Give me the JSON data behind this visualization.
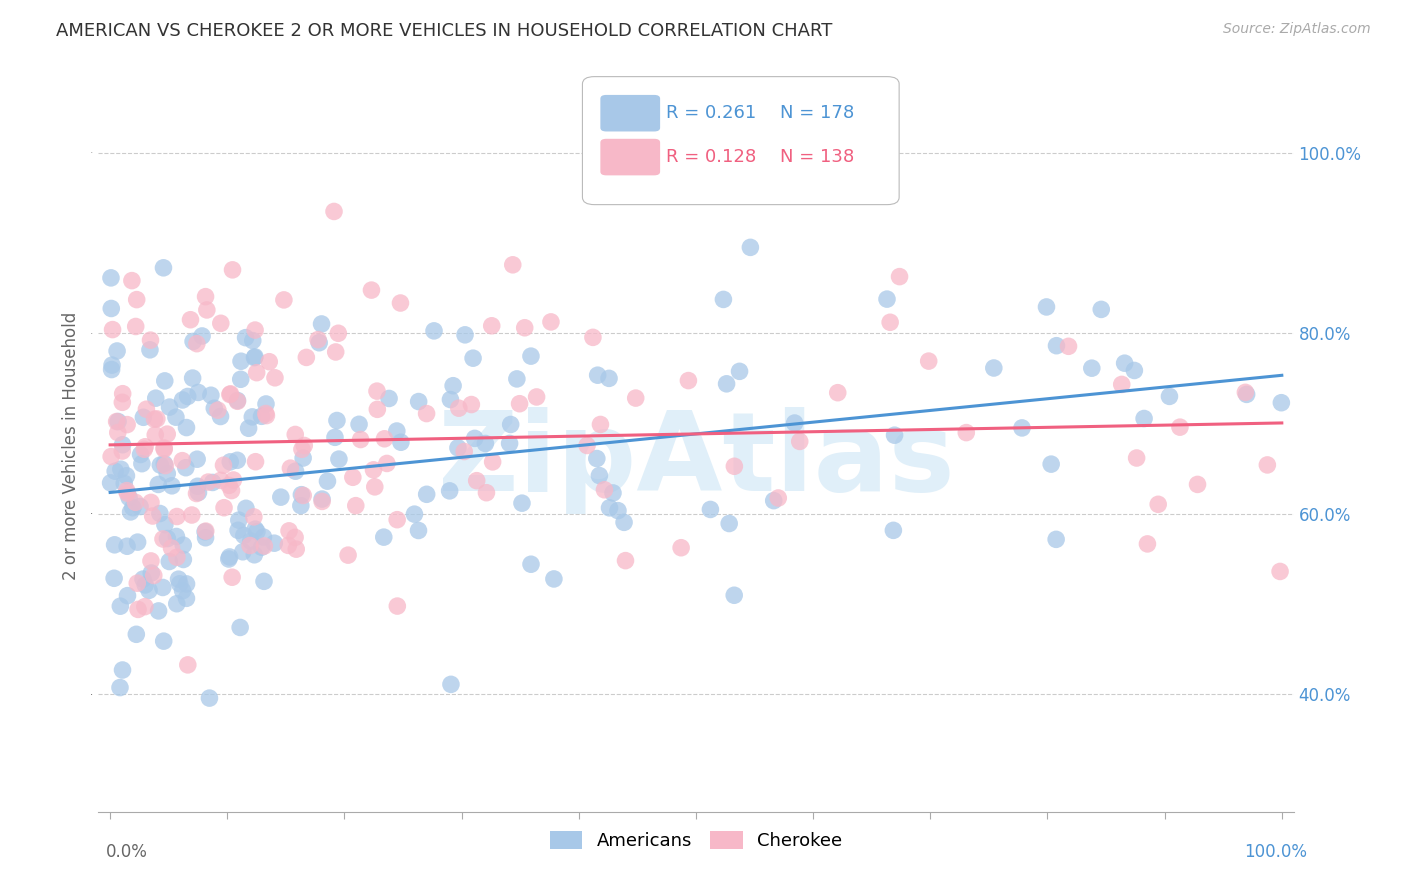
{
  "title": "AMERICAN VS CHEROKEE 2 OR MORE VEHICLES IN HOUSEHOLD CORRELATION CHART",
  "source": "Source: ZipAtlas.com",
  "ylabel": "2 or more Vehicles in Household",
  "americans_R": 0.261,
  "americans_N": 178,
  "cherokee_R": 0.128,
  "cherokee_N": 138,
  "american_color": "#a8c8e8",
  "cherokee_color": "#f7b8c8",
  "american_line_color": "#4d94d4",
  "cherokee_line_color": "#f06080",
  "watermark": "ZipAtlas",
  "legend_R_american": "0.261",
  "legend_N_american": "178",
  "legend_R_cherokee": "0.128",
  "legend_N_cherokee": "138",
  "american_seed": 12,
  "cherokee_seed": 99,
  "title_fontsize": 13,
  "tick_fontsize": 12,
  "ylabel_fontsize": 12
}
